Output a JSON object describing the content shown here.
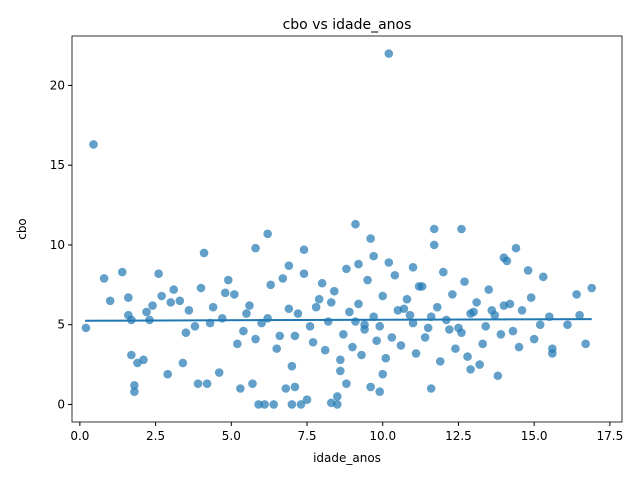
{
  "chart_data": {
    "type": "scatter",
    "title": "cbo vs idade_anos",
    "x_label": "idade_anos",
    "y_label": "cbo",
    "color": "#1f77b4",
    "x": [
      0.45,
      10.2,
      0.2,
      6.2,
      12.6,
      11.7,
      9.1,
      9.6,
      5.8,
      7.4,
      4.1,
      14.4,
      14.0,
      9.9,
      8.5,
      5.9,
      6.1,
      6.4,
      7.0,
      7.3,
      8.3,
      7.5,
      8.5,
      1.8,
      1.8,
      3.9,
      4.2,
      5.3,
      5.7,
      6.8,
      7.1,
      8.8,
      9.6,
      11.6,
      13.8,
      2.9,
      1.7,
      1.9,
      2.1,
      3.4,
      4.6,
      16.7,
      15.6,
      15.6,
      16.4,
      16.9,
      16.1,
      16.5,
      0.8,
      1.0,
      1.4,
      1.6,
      2.6,
      1.6,
      1.7,
      2.2,
      2.4,
      2.7,
      3.1,
      3.3,
      3.6,
      3.8,
      4.0,
      4.4,
      4.7,
      4.9,
      5.1,
      5.4,
      5.6,
      6.0,
      6.3,
      6.6,
      6.9,
      7.2,
      7.6,
      7.9,
      8.2,
      8.4,
      8.7,
      8.9,
      9.2,
      9.4,
      9.7,
      10.0,
      10.3,
      10.5,
      10.8,
      11.0,
      11.3,
      11.5,
      11.8,
      12.1,
      12.3,
      12.6,
      12.9,
      13.1,
      13.4,
      13.7,
      14.0,
      14.3,
      14.6,
      14.9,
      15.2,
      15.5,
      5.2,
      5.8,
      6.5,
      7.1,
      7.7,
      8.1,
      8.6,
      9.0,
      9.3,
      9.8,
      10.1,
      10.6,
      11.1,
      11.4,
      11.9,
      12.4,
      12.8,
      13.3,
      13.9,
      14.5,
      15.0,
      6.7,
      7.4,
      8.0,
      8.8,
      9.5,
      10.4,
      11.2,
      12.0,
      12.7,
      13.5,
      8.3,
      9.1,
      9.9,
      10.7,
      11.6,
      12.2,
      13.0,
      14.2,
      6.2,
      7.8,
      9.4,
      10.9,
      12.5,
      13.6,
      3.5,
      4.8,
      5.5,
      14.8,
      15.3,
      2.3,
      3.0,
      4.3,
      9.7,
      10.2,
      11.7,
      8.6,
      10.0,
      12.9,
      7.0,
      13.2,
      14.1,
      11.0,
      9.2,
      6.9
    ],
    "values": [
      16.3,
      22.0,
      4.8,
      10.7,
      11.0,
      11.0,
      11.3,
      10.4,
      9.8,
      9.7,
      9.5,
      9.8,
      9.2,
      0.8,
      0.0,
      0.0,
      0.0,
      0.0,
      0.0,
      0.0,
      0.1,
      0.3,
      0.5,
      0.8,
      1.2,
      1.3,
      1.3,
      1.0,
      1.3,
      1.0,
      1.1,
      1.3,
      1.1,
      1.0,
      1.8,
      1.9,
      3.1,
      2.6,
      2.8,
      2.6,
      2.0,
      3.8,
      3.5,
      3.2,
      6.9,
      7.3,
      5.0,
      5.6,
      7.9,
      6.5,
      8.3,
      6.7,
      8.2,
      5.6,
      5.3,
      5.8,
      6.2,
      6.8,
      7.2,
      6.5,
      5.9,
      4.9,
      7.3,
      6.1,
      5.4,
      7.8,
      6.9,
      4.6,
      6.2,
      5.1,
      7.5,
      4.3,
      6.0,
      5.7,
      4.9,
      6.6,
      5.2,
      7.1,
      4.4,
      5.8,
      6.3,
      4.7,
      5.5,
      6.8,
      4.2,
      5.9,
      6.6,
      5.1,
      7.4,
      4.8,
      6.1,
      5.3,
      6.9,
      4.5,
      5.7,
      6.4,
      4.9,
      5.6,
      6.2,
      4.6,
      5.9,
      6.7,
      5.0,
      5.5,
      3.8,
      4.1,
      3.5,
      4.3,
      3.9,
      3.4,
      2.8,
      3.6,
      3.1,
      4.0,
      2.9,
      3.7,
      3.2,
      4.2,
      2.7,
      3.5,
      3.0,
      3.8,
      4.4,
      3.6,
      4.1,
      7.9,
      8.2,
      7.6,
      8.5,
      7.8,
      8.1,
      7.4,
      8.3,
      7.7,
      7.2,
      6.4,
      5.2,
      4.9,
      6.0,
      5.5,
      4.7,
      5.8,
      6.3,
      5.4,
      6.1,
      5.0,
      5.6,
      4.8,
      5.9,
      4.5,
      7.0,
      5.7,
      8.4,
      8.0,
      5.3,
      6.4,
      5.1,
      9.3,
      8.9,
      10.0,
      2.1,
      1.9,
      2.2,
      2.4,
      2.5,
      9.0,
      8.6,
      8.8,
      8.7
    ],
    "trend": {
      "x": [
        0.17,
        16.9
      ],
      "values": [
        5.25,
        5.35
      ]
    },
    "xlim": [
      -0.26,
      17.9
    ],
    "ylim": [
      -1.1,
      23.1
    ],
    "xticks": [
      {
        "value": 0,
        "label": "0.0"
      },
      {
        "value": 2.5,
        "label": "2.5"
      },
      {
        "value": 5,
        "label": "5.0"
      },
      {
        "value": 7.5,
        "label": "7.5"
      },
      {
        "value": 10,
        "label": "10.0"
      },
      {
        "value": 12.5,
        "label": "12.5"
      },
      {
        "value": 15,
        "label": "15.0"
      },
      {
        "value": 17.5,
        "label": "17.5"
      }
    ],
    "yticks": [
      0,
      5,
      10,
      15,
      20
    ]
  }
}
